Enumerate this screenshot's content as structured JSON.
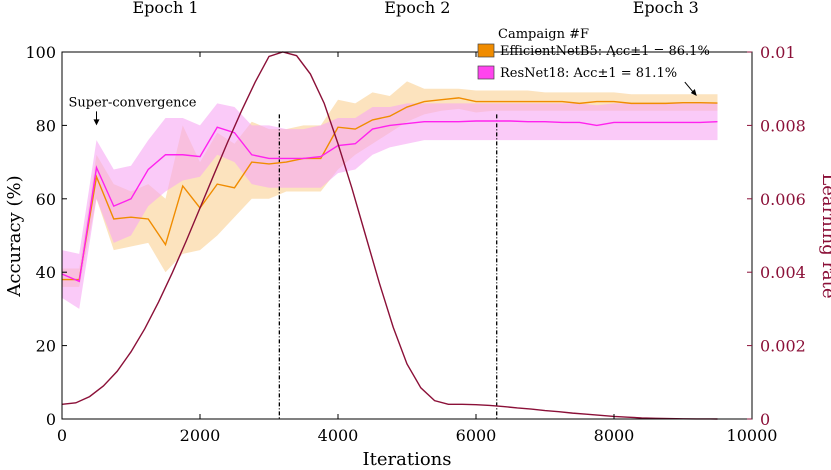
{
  "chart_data": {
    "type": "line",
    "title": "",
    "xlabel": "Iterations",
    "ylabel": "Accuracy (%)",
    "y2label": "Learning rate",
    "xlim": [
      0,
      10000
    ],
    "ylim": [
      0,
      100
    ],
    "y2lim": [
      0,
      0.01
    ],
    "x_ticks": [
      "0",
      "2000",
      "4000",
      "6000",
      "8000",
      "10000"
    ],
    "y_ticks": [
      "0",
      "20",
      "40",
      "60",
      "80",
      "100"
    ],
    "y2_ticks": [
      "0",
      "0.002",
      "0.004",
      "0.006",
      "0.008",
      "0.01"
    ],
    "epochs": [
      {
        "label": "Epoch 1",
        "x_center": 1500
      },
      {
        "label": "Epoch 2",
        "x_center": 5150
      },
      {
        "label": "Epoch 3",
        "x_center": 8750
      }
    ],
    "epoch_boundaries": [
      3150,
      6300
    ],
    "legend": {
      "title": "Campaign #F",
      "entries": [
        {
          "text": "EfficientNetB5: Acc±1 = 86.1%",
          "color": "#f08c00"
        },
        {
          "text": "ResNet18: Acc±1 = 81.1%",
          "color": "#ff44ee"
        }
      ]
    },
    "annotations": [
      {
        "text": "Super-convergence",
        "x": 500,
        "y": 80
      },
      {
        "text": "",
        "x": 9200,
        "y": 88
      }
    ],
    "series": [
      {
        "name": "EfficientNetB5",
        "color": "#f08c00",
        "band_color": "#fbd9a8",
        "x": [
          0,
          250,
          500,
          750,
          1000,
          1250,
          1500,
          1750,
          2000,
          2250,
          2500,
          2750,
          3000,
          3250,
          3500,
          3750,
          4000,
          4250,
          4500,
          4750,
          5000,
          5250,
          5500,
          5750,
          6000,
          6250,
          6500,
          6750,
          7000,
          7250,
          7500,
          7750,
          8000,
          8250,
          8500,
          8750,
          9000,
          9250,
          9500
        ],
        "values": [
          38,
          38,
          66,
          54.5,
          55,
          54.5,
          47.5,
          63.5,
          57.5,
          64,
          63,
          70,
          69.5,
          70,
          71,
          71,
          79.5,
          79,
          81.5,
          82.5,
          85,
          86.5,
          87,
          87.5,
          86.5,
          86.5,
          86.5,
          86.5,
          86.5,
          86.5,
          86,
          86.5,
          86.5,
          86,
          86,
          86,
          86.2,
          86.2,
          86.1
        ],
        "lower": [
          36,
          36,
          60,
          46,
          47,
          48,
          40,
          45,
          46,
          50,
          55,
          60,
          60,
          62,
          62,
          62,
          68,
          72,
          75,
          78,
          81,
          83,
          84,
          84.5,
          83.5,
          84,
          84,
          84,
          84,
          84,
          84,
          84,
          84,
          84,
          84,
          84,
          84,
          84,
          84
        ],
        "upper": [
          41,
          41,
          72,
          64,
          62,
          64,
          60,
          80,
          70,
          78,
          75,
          81,
          79,
          79,
          80,
          80,
          87,
          86,
          89,
          88,
          92,
          90,
          90,
          90,
          89.5,
          89.5,
          89.5,
          89.5,
          89,
          89,
          89,
          89,
          89,
          88.5,
          88.5,
          88.5,
          88.5,
          88.5,
          88.5
        ]
      },
      {
        "name": "ResNet18",
        "color": "#ff22ee",
        "band_color": "#f7a6f4",
        "x": [
          0,
          250,
          500,
          750,
          1000,
          1250,
          1500,
          1750,
          2000,
          2250,
          2500,
          2750,
          3000,
          3250,
          3500,
          3750,
          4000,
          4250,
          4500,
          4750,
          5000,
          5250,
          5500,
          5750,
          6000,
          6250,
          6500,
          6750,
          7000,
          7250,
          7500,
          7750,
          8000,
          8250,
          8500,
          8750,
          9000,
          9250,
          9500
        ],
        "values": [
          39.5,
          37.5,
          68.5,
          58,
          60,
          68,
          72,
          72,
          71.5,
          79.5,
          78,
          72,
          71,
          71,
          71,
          71.5,
          74.5,
          75,
          79,
          80,
          80.5,
          81,
          81,
          81,
          81.2,
          81.2,
          81.2,
          81,
          81,
          80.8,
          80.8,
          80,
          80.8,
          80.8,
          80.8,
          80.8,
          80.8,
          80.8,
          81
        ],
        "lower": [
          33,
          30,
          60,
          48,
          50,
          58,
          62,
          65,
          66,
          72,
          70,
          64,
          63,
          63,
          63,
          63,
          67,
          68,
          72,
          74,
          75,
          76,
          76,
          76,
          76,
          76,
          76,
          76,
          76,
          76,
          76,
          76,
          76,
          76,
          76,
          76,
          76,
          76,
          76
        ],
        "upper": [
          46,
          45,
          76,
          68,
          69,
          76,
          82,
          82,
          80,
          86,
          85,
          80,
          80,
          79,
          79,
          80,
          82,
          82,
          85,
          85,
          86,
          86,
          86,
          86,
          86,
          86,
          86,
          86,
          86,
          86,
          86,
          85.5,
          86,
          86,
          86,
          86,
          86,
          86,
          86
        ]
      }
    ],
    "learning_rate": {
      "name": "Learning rate",
      "color": "#8b1038",
      "x": [
        0,
        200,
        400,
        600,
        800,
        1000,
        1200,
        1400,
        1600,
        1800,
        2000,
        2200,
        2400,
        2600,
        2800,
        3000,
        3200,
        3400,
        3600,
        3800,
        4000,
        4200,
        4400,
        4600,
        4800,
        5000,
        5200,
        5400,
        5600,
        5800,
        6000,
        6200,
        6400,
        6600,
        6800,
        7000,
        7200,
        7400,
        7600,
        7800,
        8000,
        8200,
        8400,
        8600,
        8800,
        9000,
        9200,
        9400,
        9500
      ],
      "values": [
        0.0004,
        0.00044,
        0.00061,
        0.0009,
        0.0013,
        0.00183,
        0.00246,
        0.00319,
        0.00399,
        0.00485,
        0.00575,
        0.00665,
        0.00754,
        0.00839,
        0.00918,
        0.00988,
        0.01,
        0.0099,
        0.0094,
        0.0086,
        0.0075,
        0.0063,
        0.005,
        0.0037,
        0.0025,
        0.0015,
        0.00085,
        0.0005,
        0.0004,
        0.0004,
        0.00039,
        0.00037,
        0.00034,
        0.0003,
        0.00027,
        0.00023,
        0.0002,
        0.00016,
        0.00013,
        0.0001,
        7e-05,
        5e-05,
        3e-05,
        2e-05,
        1e-05,
        5e-06,
        2e-06,
        1e-06,
        0
      ]
    }
  }
}
